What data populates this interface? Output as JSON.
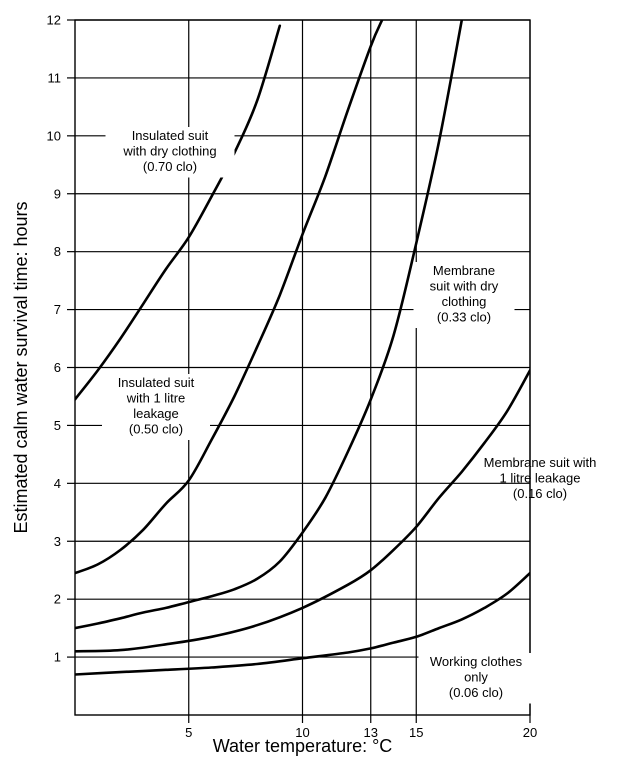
{
  "chart_data": {
    "type": "line",
    "title": "",
    "xlabel": "Water temperature: °C",
    "ylabel": "Estimated calm water survival time: hours",
    "xlim": [
      0,
      20
    ],
    "ylim": [
      0,
      12
    ],
    "x_ticks": [
      5,
      10,
      13,
      15,
      20
    ],
    "x_tick_labels": [
      "5",
      "10",
      "13",
      "15",
      "20"
    ],
    "y_ticks": [
      1,
      2,
      3,
      4,
      5,
      6,
      7,
      8,
      9,
      10,
      11,
      12
    ],
    "y_tick_labels": [
      "1",
      "2",
      "3",
      "4",
      "5",
      "6",
      "7",
      "8",
      "9",
      "10",
      "11",
      "12"
    ],
    "grid": true,
    "series": [
      {
        "x": [
          0,
          1,
          2,
          3,
          4,
          5,
          6,
          7,
          8,
          9
        ],
        "y": [
          5.45,
          5.95,
          6.5,
          7.1,
          7.7,
          8.25,
          8.95,
          9.7,
          10.6,
          11.9
        ]
      },
      {
        "x": [
          0,
          1,
          2,
          3,
          4,
          5,
          6,
          7,
          8,
          9,
          10,
          11,
          12,
          13,
          13.5
        ],
        "y": [
          2.45,
          2.6,
          2.85,
          3.2,
          3.65,
          4.05,
          4.75,
          5.5,
          6.35,
          7.25,
          8.3,
          9.3,
          10.45,
          11.55,
          12
        ]
      },
      {
        "x": [
          0,
          1,
          2,
          3,
          4,
          5,
          6,
          7,
          8,
          9,
          10,
          11,
          12,
          13,
          14,
          15,
          16,
          17
        ],
        "y": [
          1.5,
          1.58,
          1.67,
          1.77,
          1.85,
          1.95,
          2.05,
          2.17,
          2.35,
          2.65,
          3.15,
          3.75,
          4.55,
          5.45,
          6.55,
          8.15,
          9.9,
          12
        ]
      },
      {
        "x": [
          0,
          2,
          4,
          6,
          8,
          10,
          12,
          13,
          14,
          15,
          16,
          17,
          18,
          19,
          20
        ],
        "y": [
          1.1,
          1.12,
          1.22,
          1.35,
          1.55,
          1.85,
          2.25,
          2.5,
          2.85,
          3.25,
          3.75,
          4.2,
          4.7,
          5.25,
          5.95
        ]
      },
      {
        "x": [
          0,
          2,
          4,
          6,
          8,
          10,
          12,
          13,
          14,
          15,
          16,
          17,
          18,
          19,
          20
        ],
        "y": [
          0.7,
          0.74,
          0.78,
          0.82,
          0.88,
          0.98,
          1.08,
          1.15,
          1.25,
          1.35,
          1.5,
          1.65,
          1.85,
          2.1,
          2.45
        ]
      }
    ],
    "annotations": [
      {
        "lines": [
          "Insulated suit",
          "with dry clothing",
          "(0.70 clo)"
        ]
      },
      {
        "lines": [
          "Insulated suit",
          "with 1 litre",
          "leakage",
          "(0.50 clo)"
        ]
      },
      {
        "lines": [
          "Membrane",
          "suit with dry",
          "clothing",
          "(0.33 clo)"
        ]
      },
      {
        "lines": [
          "Membrane suit with",
          "1 litre leakage",
          "(0.16 clo)"
        ]
      },
      {
        "lines": [
          "Working clothes",
          "only",
          "(0.06 clo)"
        ]
      }
    ]
  }
}
